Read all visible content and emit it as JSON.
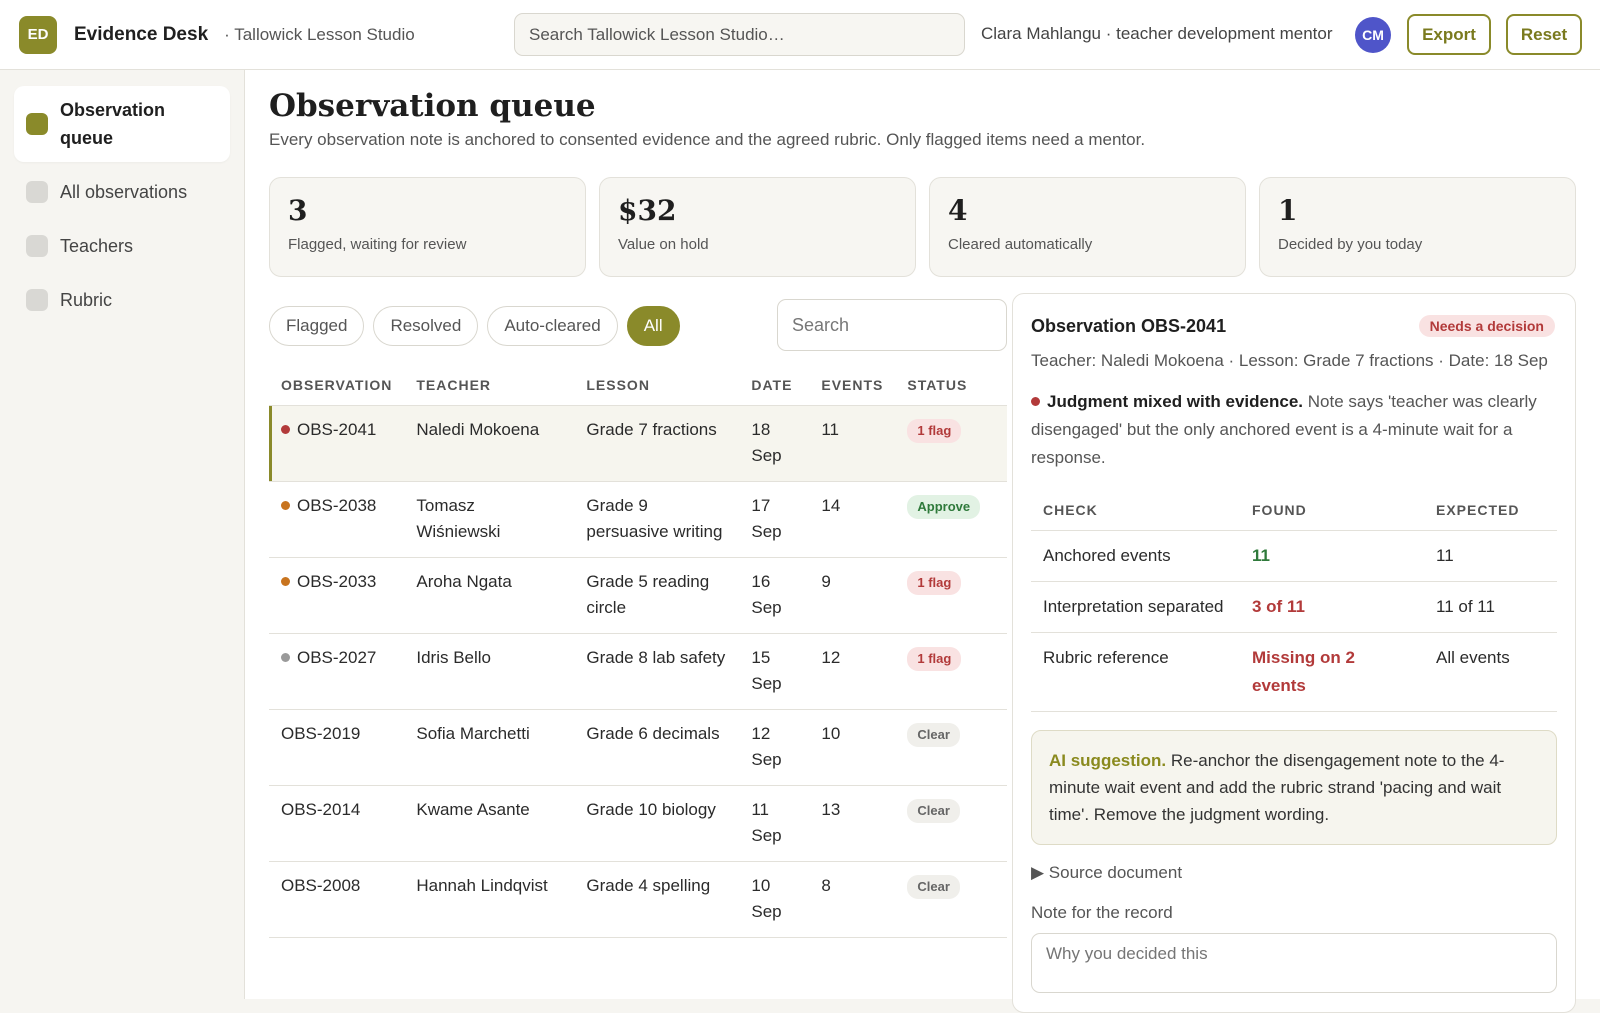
{
  "header": {
    "logo_text": "ED",
    "brand": "Evidence Desk",
    "workspace": "· Tallowick Lesson Studio",
    "search_placeholder": "Search Tallowick Lesson Studio…",
    "user": "Clara Mahlangu · teacher development mentor",
    "avatar": "CM",
    "export_label": "Export",
    "reset_label": "Reset"
  },
  "sidebar": {
    "items": [
      {
        "label": "Observation queue",
        "active": true
      },
      {
        "label": "All observations"
      },
      {
        "label": "Teachers"
      },
      {
        "label": "Rubric"
      }
    ]
  },
  "main": {
    "title": "Observation queue",
    "subtitle": "Every observation note is anchored to consented evidence and the agreed rubric. Only flagged items need a mentor.",
    "stats": [
      {
        "value": "3",
        "label": "Flagged, waiting for review"
      },
      {
        "value": "$32",
        "label": "Value on hold"
      },
      {
        "value": "4",
        "label": "Cleared automatically"
      },
      {
        "value": "1",
        "label": "Decided by you today"
      }
    ],
    "filters": [
      "Flagged",
      "Resolved",
      "Auto-cleared",
      "All"
    ],
    "active_filter": "All",
    "search_placeholder": "Search"
  },
  "table": {
    "columns": [
      "OBSERVATION",
      "TEACHER",
      "LESSON",
      "DATE",
      "EVENTS",
      "STATUS"
    ],
    "rows": [
      {
        "id": "OBS-2041",
        "teacher": "Naledi Mokoena",
        "lesson": "Grade 7 fractions",
        "date": "18 Sep",
        "events": "11",
        "status": "1 flag",
        "status_type": "flag",
        "dot": "#b23a3a",
        "selected": true
      },
      {
        "id": "OBS-2038",
        "teacher": "Tomasz Wiśniewski",
        "lesson": "Grade 9 persuasive writing",
        "date": "17 Sep",
        "events": "14",
        "status": "Approve",
        "status_type": "approve",
        "dot": "#c8741f"
      },
      {
        "id": "OBS-2033",
        "teacher": "Aroha Ngata",
        "lesson": "Grade 5 reading circle",
        "date": "16 Sep",
        "events": "9",
        "status": "1 flag",
        "status_type": "flag",
        "dot": "#c8741f"
      },
      {
        "id": "OBS-2027",
        "teacher": "Idris Bello",
        "lesson": "Grade 8 lab safety",
        "date": "15 Sep",
        "events": "12",
        "status": "1 flag",
        "status_type": "flag",
        "dot": "#9a9a9a"
      },
      {
        "id": "OBS-2019",
        "teacher": "Sofia Marchetti",
        "lesson": "Grade 6 decimals",
        "date": "12 Sep",
        "events": "10",
        "status": "Clear",
        "status_type": "clear",
        "dot": null
      },
      {
        "id": "OBS-2014",
        "teacher": "Kwame Asante",
        "lesson": "Grade 10 biology",
        "date": "11 Sep",
        "events": "13",
        "status": "Clear",
        "status_type": "clear",
        "dot": null
      },
      {
        "id": "OBS-2008",
        "teacher": "Hannah Lindqvist",
        "lesson": "Grade 4 spelling",
        "date": "10 Sep",
        "events": "8",
        "status": "Clear",
        "status_type": "clear",
        "dot": null
      }
    ]
  },
  "detail": {
    "title": "Observation OBS-2041",
    "badge": "Needs a decision",
    "meta": "Teacher: Naledi Mokoena · Lesson: Grade 7 fractions · Date: 18 Sep",
    "finding_title": "Judgment mixed with evidence.",
    "finding_text": " Note says 'teacher was clearly disengaged' but the only anchored event is a 4-minute wait for a response.",
    "check_columns": [
      "CHECK",
      "FOUND",
      "EXPECTED"
    ],
    "checks": [
      {
        "check": "Anchored events",
        "found": "11",
        "found_type": "green",
        "expected": "11"
      },
      {
        "check": "Interpretation separated",
        "found": "3 of 11",
        "found_type": "red",
        "expected": "11 of 11"
      },
      {
        "check": "Rubric reference",
        "found": "Missing on 2 events",
        "found_type": "red",
        "expected": "All events"
      }
    ],
    "ai_title": "AI suggestion.",
    "ai_text": " Re-anchor the disengagement note to the 4-minute wait event and add the rubric strand 'pacing and wait time'. Remove the judgment wording.",
    "source_label": "▶  Source document",
    "note_label": "Note for the record",
    "note_placeholder": "Why you decided this"
  }
}
